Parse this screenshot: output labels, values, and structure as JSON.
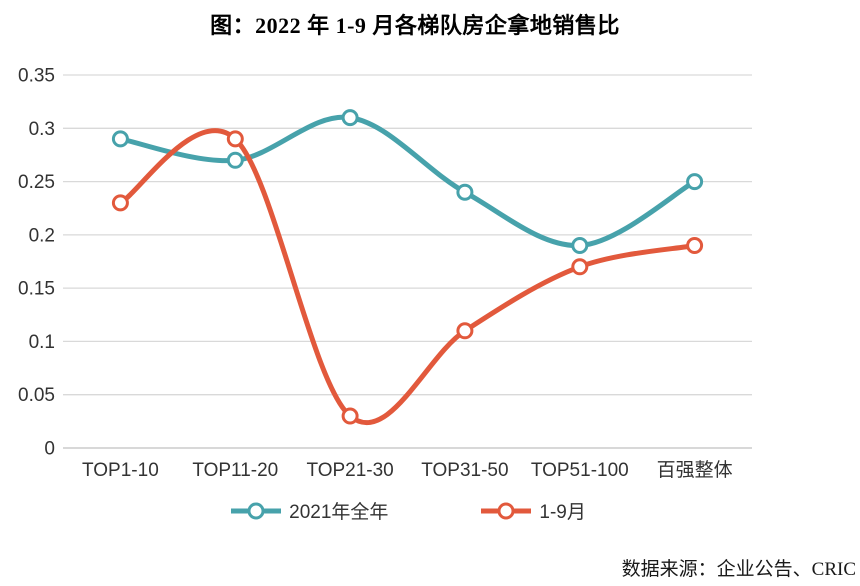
{
  "header": {
    "title": "图：2022 年 1-9 月各梯队房企拿地销售比"
  },
  "source_note": "数据来源：企业公告、CRIC",
  "chart_data": {
    "type": "line",
    "title": "图：2022 年 1-9 月各梯队房企拿地销售比",
    "smooth": true,
    "categories": [
      "TOP1-10",
      "TOP11-20",
      "TOP21-30",
      "TOP31-50",
      "TOP51-100",
      "百强整体"
    ],
    "series": [
      {
        "name": "2021年全年",
        "color": "#47A2AB",
        "values": [
          0.29,
          0.27,
          0.31,
          0.24,
          0.19,
          0.25
        ]
      },
      {
        "name": "1-9月",
        "color": "#E2593C",
        "values": [
          0.23,
          0.29,
          0.03,
          0.11,
          0.17,
          0.19
        ]
      }
    ],
    "xlabel": "",
    "ylabel": "",
    "ylim": [
      0,
      0.35
    ],
    "ytick_step": 0.05,
    "yticks": [
      "0",
      "0.05",
      "0.1",
      "0.15",
      "0.2",
      "0.25",
      "0.3",
      "0.35"
    ],
    "grid": "horizontal",
    "grid_color": "#D9D9D9",
    "axis_line_color": "#C0C0C0",
    "tick_label_color": "#333333",
    "legend_position": "bottom",
    "marker": "open-circle"
  }
}
